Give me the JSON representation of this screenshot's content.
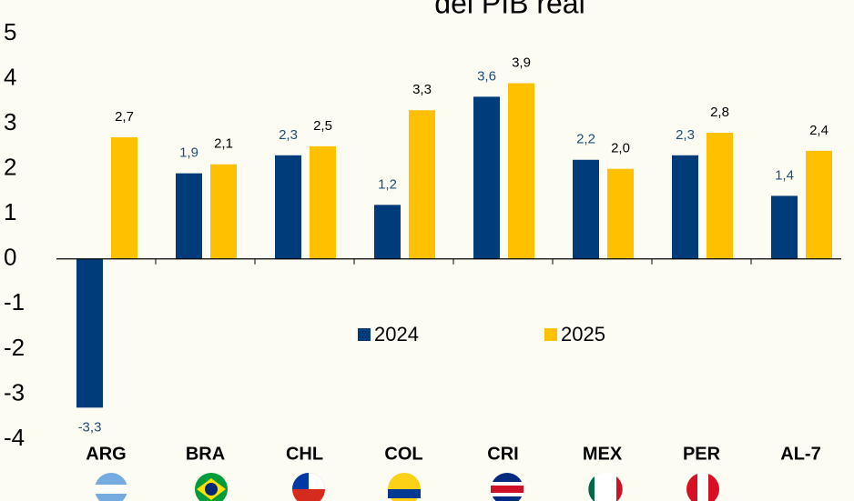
{
  "chart_data": {
    "type": "bar",
    "title": "del PIB real",
    "categories": [
      "ARG",
      "BRA",
      "CHL",
      "COL",
      "CRI",
      "MEX",
      "PER",
      "AL-7"
    ],
    "series": [
      {
        "name": "2024",
        "color": "#003b7a",
        "values": [
          -3.3,
          1.9,
          2.3,
          1.2,
          3.6,
          2.2,
          2.3,
          1.4
        ],
        "value_labels": [
          "-3,3",
          "1,9",
          "2,3",
          "1,2",
          "3,6",
          "2,2",
          "2,3",
          "1,4"
        ]
      },
      {
        "name": "2025",
        "color": "#ffc000",
        "values": [
          2.7,
          2.1,
          2.5,
          3.3,
          3.9,
          2.0,
          2.8,
          2.4
        ],
        "value_labels": [
          "2,7",
          "2,1",
          "2,5",
          "3,3",
          "3,9",
          "2,0",
          "2,8",
          "2,4"
        ]
      }
    ],
    "ylim": [
      -4,
      5
    ],
    "yticks": [
      -4,
      -3,
      -2,
      -1,
      0,
      1,
      2,
      3,
      4,
      5
    ],
    "grid": false
  }
}
